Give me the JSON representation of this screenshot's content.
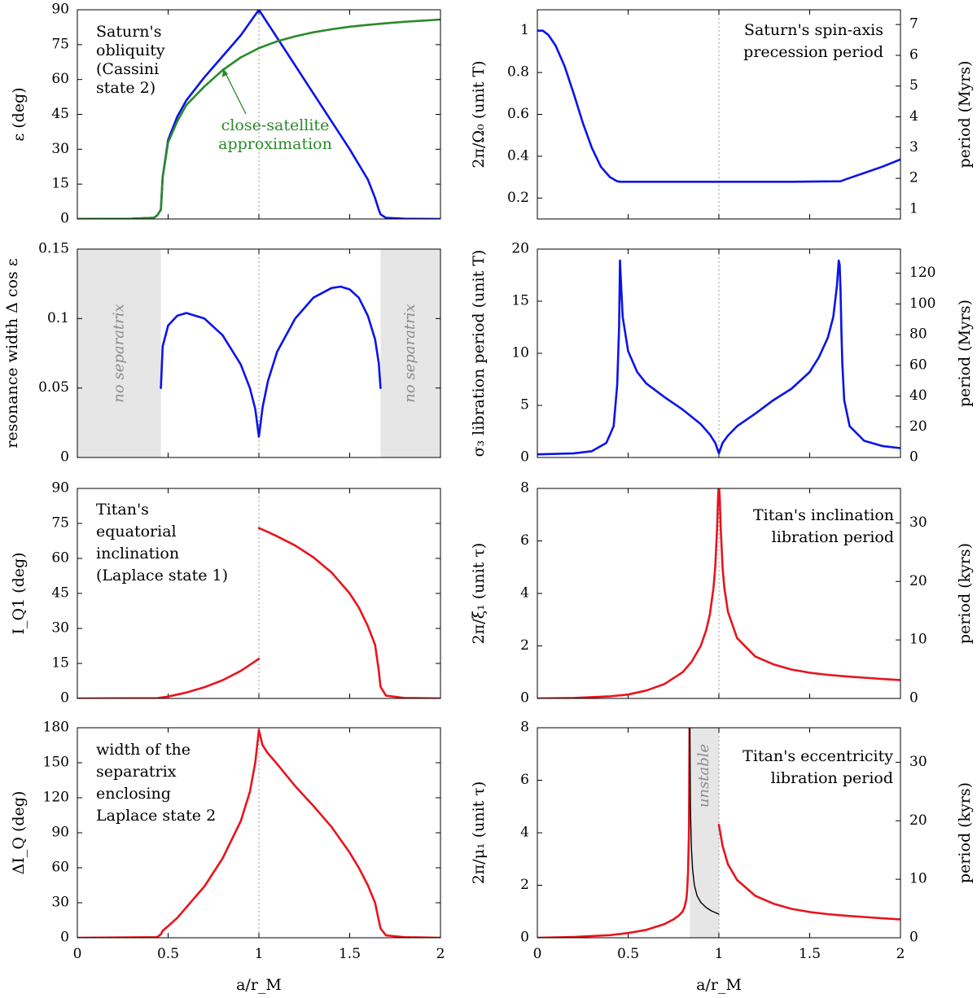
{
  "colors": {
    "blue": "#0a14e8",
    "green": "#2a8a2a",
    "red": "#e8141e",
    "black": "#000000",
    "band": "#e6e6e6"
  },
  "chart_data": [
    {
      "id": "p1",
      "type": "line",
      "position": "row 1 left",
      "xlim": [
        0,
        2
      ],
      "ylim": [
        0,
        90
      ],
      "xticks": [
        0,
        0.5,
        1,
        1.5,
        2
      ],
      "yticks": [
        0,
        15,
        30,
        45,
        60,
        75,
        90
      ],
      "xticklabels": [
        "0",
        "0.5",
        "1",
        "1.5",
        "2"
      ],
      "yticklabels": [
        "0",
        "15",
        "30",
        "45",
        "60",
        "75",
        "90"
      ],
      "ylabel": "ε (deg)",
      "xlabel": "",
      "vline": 1,
      "annotation": [
        "Saturn's",
        "obliquity",
        "(Cassini",
        "state 2)"
      ],
      "series": [
        {
          "name": "Saturn's obliquity",
          "color": "blue",
          "x": [
            0,
            0.3,
            0.42,
            0.44,
            0.46,
            0.47,
            0.5,
            0.55,
            0.6,
            0.7,
            0.8,
            0.9,
            1.0,
            1.1,
            1.2,
            1.3,
            1.4,
            1.5,
            1.6,
            1.64,
            1.66,
            1.67,
            1.7,
            1.8,
            2.0
          ],
          "y": [
            0,
            0.1,
            0.5,
            1.5,
            4,
            18,
            34,
            44,
            51,
            61,
            70,
            79,
            90,
            78,
            66,
            54,
            42,
            30,
            17,
            9,
            4,
            2,
            0.5,
            0.1,
            0
          ]
        },
        {
          "name": "close-satellite approximation",
          "color": "green",
          "x": [
            0,
            0.3,
            0.42,
            0.44,
            0.46,
            0.47,
            0.5,
            0.55,
            0.6,
            0.7,
            0.8,
            0.9,
            1.0,
            1.1,
            1.2,
            1.3,
            1.4,
            1.5,
            1.6,
            1.7,
            1.8,
            1.9,
            2.0
          ],
          "y": [
            0,
            0.1,
            0.5,
            1.5,
            4,
            18,
            33,
            42,
            49,
            57,
            64,
            69.5,
            73.5,
            76.4,
            78.6,
            80.3,
            81.6,
            82.7,
            83.5,
            84.2,
            84.8,
            85.3,
            85.8
          ]
        }
      ],
      "callout": [
        "close-satellite",
        "approximation"
      ]
    },
    {
      "id": "p2",
      "type": "line",
      "position": "row 1 right",
      "xlim": [
        0,
        2
      ],
      "ylim": [
        0.1,
        1.1
      ],
      "xticks": [
        0,
        0.5,
        1,
        1.5,
        2
      ],
      "yticks": [
        0.2,
        0.4,
        0.6,
        0.8,
        1
      ],
      "xticklabels": [
        "0",
        "0.5",
        "1",
        "1.5",
        "2"
      ],
      "yticklabels": [
        "0.2",
        "0.4",
        "0.6",
        "0.8",
        "1"
      ],
      "ylabel": "2π/Ω₀ (unit T)",
      "xlabel": "",
      "y2label": "period (Myrs)",
      "y2lim": [
        0.68,
        7.48
      ],
      "y2ticks": [
        1,
        2,
        3,
        4,
        5,
        6,
        7
      ],
      "y2ticklabels": [
        "1",
        "2",
        "3",
        "4",
        "5",
        "6",
        "7"
      ],
      "vline": 1,
      "annotation": [
        "Saturn's spin-axis",
        "precession period"
      ],
      "series": [
        {
          "name": "Saturn's spin-axis precession period",
          "color": "blue",
          "x": [
            0,
            0.03,
            0.06,
            0.1,
            0.15,
            0.2,
            0.25,
            0.3,
            0.35,
            0.4,
            0.44,
            0.46,
            0.6,
            1.0,
            1.4,
            1.67,
            1.7,
            1.8,
            1.9,
            2.0
          ],
          "y": [
            1.0,
            1.0,
            0.98,
            0.93,
            0.83,
            0.7,
            0.56,
            0.44,
            0.35,
            0.3,
            0.28,
            0.278,
            0.278,
            0.278,
            0.278,
            0.28,
            0.29,
            0.32,
            0.35,
            0.385
          ]
        }
      ]
    },
    {
      "id": "p3",
      "type": "line",
      "position": "row 2 left",
      "xlim": [
        0,
        2
      ],
      "ylim": [
        0,
        0.15
      ],
      "xticks": [
        0,
        0.5,
        1,
        1.5,
        2
      ],
      "yticks": [
        0,
        0.05,
        0.1,
        0.15
      ],
      "xticklabels": [
        "0",
        "0.5",
        "1",
        "1.5",
        "2"
      ],
      "yticklabels": [
        "0",
        "0.05",
        "0.1",
        "0.15"
      ],
      "ylabel": "resonance width Δ cos ε",
      "xlabel": "",
      "vline": 1,
      "bands": [
        {
          "from": 0,
          "to": 0.46,
          "label": "no separatrix"
        },
        {
          "from": 1.67,
          "to": 2,
          "label": "no separatrix"
        }
      ],
      "series": [
        {
          "name": "resonance width",
          "color": "blue",
          "x": [
            0.46,
            0.47,
            0.5,
            0.55,
            0.6,
            0.7,
            0.8,
            0.9,
            0.95,
            0.98,
            1.0,
            1.02,
            1.05,
            1.1,
            1.2,
            1.3,
            1.4,
            1.45,
            1.5,
            1.55,
            1.6,
            1.64,
            1.66,
            1.67
          ],
          "y": [
            0.05,
            0.08,
            0.095,
            0.102,
            0.104,
            0.1,
            0.088,
            0.067,
            0.05,
            0.035,
            0.015,
            0.036,
            0.055,
            0.076,
            0.1,
            0.115,
            0.122,
            0.123,
            0.121,
            0.115,
            0.102,
            0.085,
            0.068,
            0.05
          ]
        }
      ]
    },
    {
      "id": "p4",
      "type": "line",
      "position": "row 2 right",
      "xlim": [
        0,
        2
      ],
      "ylim": [
        0,
        20
      ],
      "xticks": [
        0,
        0.5,
        1,
        1.5,
        2
      ],
      "yticks": [
        0,
        5,
        10,
        15,
        20
      ],
      "xticklabels": [
        "0",
        "0.5",
        "1",
        "1.5",
        "2"
      ],
      "yticklabels": [
        "0",
        "5",
        "10",
        "15",
        "20"
      ],
      "ylabel": "σ₃ libration period (unit T)",
      "xlabel": "",
      "y2label": "period (Myrs)",
      "y2lim": [
        0,
        135.7
      ],
      "y2ticks": [
        0,
        20,
        40,
        60,
        80,
        100,
        120
      ],
      "y2ticklabels": [
        "0",
        "20",
        "40",
        "60",
        "80",
        "100",
        "120"
      ],
      "vline": 1,
      "series": [
        {
          "name": "σ3 libration period",
          "color": "blue",
          "x": [
            0,
            0.2,
            0.3,
            0.38,
            0.42,
            0.44,
            0.45,
            0.455,
            0.46,
            0.47,
            0.5,
            0.55,
            0.6,
            0.7,
            0.8,
            0.9,
            0.95,
            0.98,
            1.0,
            1.02,
            1.05,
            1.1,
            1.2,
            1.3,
            1.4,
            1.5,
            1.55,
            1.6,
            1.63,
            1.65,
            1.66,
            1.665,
            1.67,
            1.675,
            1.68,
            1.69,
            1.72,
            1.8,
            1.9,
            2.0
          ],
          "y": [
            0.3,
            0.4,
            0.6,
            1.4,
            3.0,
            7,
            12.5,
            18.9,
            17,
            13.5,
            10.2,
            8.2,
            7.1,
            5.8,
            4.6,
            3.2,
            2.2,
            1.4,
            0.4,
            1.4,
            2.1,
            3.0,
            4.2,
            5.5,
            6.6,
            8.2,
            9.6,
            11.5,
            13.5,
            16.5,
            18.9,
            18.5,
            16,
            12,
            9,
            5.5,
            3,
            1.6,
            1.1,
            0.9
          ]
        }
      ]
    },
    {
      "id": "p5",
      "type": "line",
      "position": "row 3 left",
      "xlim": [
        0,
        2
      ],
      "ylim": [
        0,
        90
      ],
      "xticks": [
        0,
        0.5,
        1,
        1.5,
        2
      ],
      "yticks": [
        0,
        15,
        30,
        45,
        60,
        75,
        90
      ],
      "xticklabels": [
        "0",
        "0.5",
        "1",
        "1.5",
        "2"
      ],
      "yticklabels": [
        "0",
        "15",
        "30",
        "45",
        "60",
        "75",
        "90"
      ],
      "ylabel": "I_Q1 (deg)",
      "xlabel": "",
      "vline": 1,
      "annotation": [
        "Titan's",
        "equatorial",
        "inclination",
        "(Laplace state 1)"
      ],
      "series": [
        {
          "name": "Titan inclination branch 1",
          "color": "red",
          "x": [
            0,
            0.44,
            0.5,
            0.6,
            0.7,
            0.8,
            0.9,
            1.0
          ],
          "y": [
            0,
            0.1,
            0.8,
            2.5,
            4.8,
            7.8,
            11.8,
            17
          ]
        },
        {
          "name": "Titan inclination branch 2",
          "color": "red",
          "x": [
            1.0,
            1.05,
            1.1,
            1.2,
            1.3,
            1.4,
            1.5,
            1.55,
            1.6,
            1.64,
            1.66,
            1.67,
            1.7,
            1.8,
            2.0
          ],
          "y": [
            73,
            71.3,
            69.5,
            65.5,
            60.5,
            54,
            45,
            39,
            31,
            23,
            12,
            5,
            1.2,
            0.2,
            0
          ]
        }
      ]
    },
    {
      "id": "p6",
      "type": "line",
      "position": "row 3 right",
      "xlim": [
        0,
        2
      ],
      "ylim": [
        0,
        8
      ],
      "xticks": [
        0,
        0.5,
        1,
        1.5,
        2
      ],
      "yticks": [
        0,
        2,
        4,
        6,
        8
      ],
      "xticklabels": [
        "0",
        "0.5",
        "1",
        "1.5",
        "2"
      ],
      "yticklabels": [
        "0",
        "2",
        "4",
        "6",
        "8"
      ],
      "ylabel": "2π/ξ₁ (unit τ)",
      "xlabel": "",
      "y2label": "period (kyrs)",
      "y2lim": [
        0,
        35.9
      ],
      "y2ticks": [
        0,
        10,
        20,
        30
      ],
      "y2ticklabels": [
        "0",
        "10",
        "20",
        "30"
      ],
      "vline": 1,
      "annotation": [
        "Titan's inclination",
        "libration period"
      ],
      "series": [
        {
          "name": "Titan inclination libration period",
          "color": "red",
          "x": [
            0,
            0.2,
            0.4,
            0.5,
            0.6,
            0.7,
            0.8,
            0.85,
            0.9,
            0.93,
            0.95,
            0.97,
            0.98,
            0.99,
            0.995,
            1.0,
            1.005,
            1.01,
            1.02,
            1.03,
            1.05,
            1.1,
            1.2,
            1.3,
            1.4,
            1.5,
            1.6,
            1.7,
            1.8,
            1.9,
            2.0
          ],
          "y": [
            0,
            0.02,
            0.08,
            0.15,
            0.3,
            0.55,
            1.0,
            1.4,
            2.0,
            2.6,
            3.2,
            4.2,
            5.0,
            6.5,
            7.6,
            8.2,
            7.6,
            6.5,
            5.0,
            4.2,
            3.3,
            2.3,
            1.6,
            1.3,
            1.1,
            0.98,
            0.9,
            0.84,
            0.79,
            0.74,
            0.7
          ]
        }
      ]
    },
    {
      "id": "p7",
      "type": "line",
      "position": "row 4 left",
      "xlim": [
        0,
        2
      ],
      "ylim": [
        0,
        180
      ],
      "xticks": [
        0,
        0.5,
        1,
        1.5,
        2
      ],
      "yticks": [
        0,
        30,
        60,
        90,
        120,
        150,
        180
      ],
      "xticklabels": [
        "0",
        "0.5",
        "1",
        "1.5",
        "2"
      ],
      "yticklabels": [
        "0",
        "30",
        "60",
        "90",
        "120",
        "150",
        "180"
      ],
      "ylabel": "ΔI_Q (deg)",
      "xlabel": "a/r_M",
      "vline": 1,
      "annotation": [
        "width of the",
        "separatrix",
        "enclosing",
        "Laplace state 2"
      ],
      "series": [
        {
          "name": "separatrix width",
          "color": "red",
          "x": [
            0,
            0.44,
            0.46,
            0.47,
            0.5,
            0.55,
            0.6,
            0.7,
            0.8,
            0.9,
            0.95,
            0.98,
            1.0,
            1.02,
            1.05,
            1.1,
            1.2,
            1.3,
            1.4,
            1.5,
            1.55,
            1.6,
            1.64,
            1.66,
            1.67,
            1.7,
            1.8,
            2.0
          ],
          "y": [
            0,
            0.5,
            3,
            6,
            10,
            17,
            26,
            44,
            68,
            100,
            125,
            150,
            178,
            165,
            158,
            149,
            130,
            113,
            95,
            73,
            60,
            45,
            30,
            15,
            8,
            2,
            0.5,
            0
          ]
        }
      ]
    },
    {
      "id": "p8",
      "type": "line",
      "position": "row 4 right",
      "xlim": [
        0,
        2
      ],
      "ylim": [
        0,
        8
      ],
      "xticks": [
        0,
        0.5,
        1,
        1.5,
        2
      ],
      "yticks": [
        0,
        2,
        4,
        6,
        8
      ],
      "xticklabels": [
        "0",
        "0.5",
        "1",
        "1.5",
        "2"
      ],
      "yticklabels": [
        "0",
        "2",
        "4",
        "6",
        "8"
      ],
      "ylabel": "2π/μ₁ (unit τ)",
      "xlabel": "a/r_M",
      "y2label": "period (kyrs)",
      "y2lim": [
        0,
        35.9
      ],
      "y2ticks": [
        0,
        10,
        20,
        30
      ],
      "y2ticklabels": [
        "0",
        "10",
        "20",
        "30"
      ],
      "vline": 1,
      "bands": [
        {
          "from": 0.84,
          "to": 1.0,
          "label": "unstable"
        }
      ],
      "annotation": [
        "Titan's eccentricity",
        "libration period"
      ],
      "series": [
        {
          "name": "eccentricity libration (stable, inner)",
          "color": "red",
          "x": [
            0,
            0.2,
            0.4,
            0.5,
            0.6,
            0.7,
            0.75,
            0.78,
            0.8,
            0.81,
            0.82,
            0.825,
            0.83,
            0.835,
            0.838
          ],
          "y": [
            0,
            0.03,
            0.1,
            0.18,
            0.3,
            0.52,
            0.7,
            0.85,
            1.0,
            1.15,
            1.45,
            1.8,
            2.5,
            4.0,
            8.0
          ]
        },
        {
          "name": "eccentricity libration (unstable branch)",
          "color": "black",
          "x": [
            0.84,
            0.843,
            0.848,
            0.855,
            0.865,
            0.88,
            0.9,
            0.93,
            0.96,
            1.0
          ],
          "y": [
            8.0,
            5.0,
            3.5,
            2.6,
            2.0,
            1.6,
            1.35,
            1.15,
            1.02,
            0.9
          ]
        },
        {
          "name": "eccentricity libration (stable, outer)",
          "color": "red",
          "x": [
            1.0,
            1.02,
            1.05,
            1.1,
            1.2,
            1.3,
            1.4,
            1.5,
            1.6,
            1.7,
            1.8,
            1.9,
            2.0
          ],
          "y": [
            4.3,
            3.5,
            2.8,
            2.2,
            1.6,
            1.3,
            1.1,
            0.98,
            0.9,
            0.84,
            0.79,
            0.74,
            0.7
          ]
        }
      ]
    }
  ]
}
